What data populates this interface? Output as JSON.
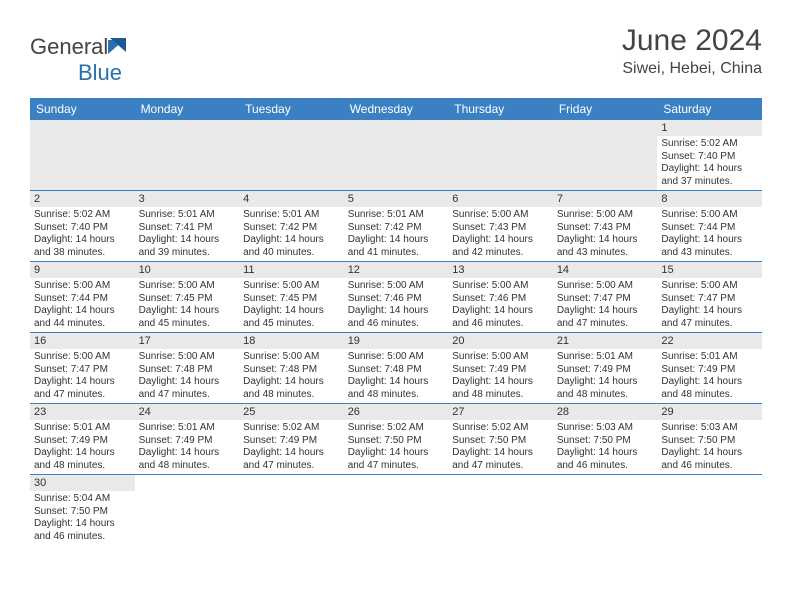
{
  "logo": {
    "general": "General",
    "blue": "Blue"
  },
  "title": "June 2024",
  "location": "Siwei, Hebei, China",
  "colors": {
    "header_bg": "#3a80c3",
    "header_text": "#ffffff",
    "daynum_bg": "#e9e9e9",
    "border": "#3a80c3",
    "text": "#333333",
    "title_color": "#444444",
    "logo_blue": "#2b6fab"
  },
  "day_headers": [
    "Sunday",
    "Monday",
    "Tuesday",
    "Wednesday",
    "Thursday",
    "Friday",
    "Saturday"
  ],
  "weeks": [
    [
      null,
      null,
      null,
      null,
      null,
      null,
      {
        "n": "1",
        "sunrise": "5:02 AM",
        "sunset": "7:40 PM",
        "daylight": "14 hours and 37 minutes."
      }
    ],
    [
      {
        "n": "2",
        "sunrise": "5:02 AM",
        "sunset": "7:40 PM",
        "daylight": "14 hours and 38 minutes."
      },
      {
        "n": "3",
        "sunrise": "5:01 AM",
        "sunset": "7:41 PM",
        "daylight": "14 hours and 39 minutes."
      },
      {
        "n": "4",
        "sunrise": "5:01 AM",
        "sunset": "7:42 PM",
        "daylight": "14 hours and 40 minutes."
      },
      {
        "n": "5",
        "sunrise": "5:01 AM",
        "sunset": "7:42 PM",
        "daylight": "14 hours and 41 minutes."
      },
      {
        "n": "6",
        "sunrise": "5:00 AM",
        "sunset": "7:43 PM",
        "daylight": "14 hours and 42 minutes."
      },
      {
        "n": "7",
        "sunrise": "5:00 AM",
        "sunset": "7:43 PM",
        "daylight": "14 hours and 43 minutes."
      },
      {
        "n": "8",
        "sunrise": "5:00 AM",
        "sunset": "7:44 PM",
        "daylight": "14 hours and 43 minutes."
      }
    ],
    [
      {
        "n": "9",
        "sunrise": "5:00 AM",
        "sunset": "7:44 PM",
        "daylight": "14 hours and 44 minutes."
      },
      {
        "n": "10",
        "sunrise": "5:00 AM",
        "sunset": "7:45 PM",
        "daylight": "14 hours and 45 minutes."
      },
      {
        "n": "11",
        "sunrise": "5:00 AM",
        "sunset": "7:45 PM",
        "daylight": "14 hours and 45 minutes."
      },
      {
        "n": "12",
        "sunrise": "5:00 AM",
        "sunset": "7:46 PM",
        "daylight": "14 hours and 46 minutes."
      },
      {
        "n": "13",
        "sunrise": "5:00 AM",
        "sunset": "7:46 PM",
        "daylight": "14 hours and 46 minutes."
      },
      {
        "n": "14",
        "sunrise": "5:00 AM",
        "sunset": "7:47 PM",
        "daylight": "14 hours and 47 minutes."
      },
      {
        "n": "15",
        "sunrise": "5:00 AM",
        "sunset": "7:47 PM",
        "daylight": "14 hours and 47 minutes."
      }
    ],
    [
      {
        "n": "16",
        "sunrise": "5:00 AM",
        "sunset": "7:47 PM",
        "daylight": "14 hours and 47 minutes."
      },
      {
        "n": "17",
        "sunrise": "5:00 AM",
        "sunset": "7:48 PM",
        "daylight": "14 hours and 47 minutes."
      },
      {
        "n": "18",
        "sunrise": "5:00 AM",
        "sunset": "7:48 PM",
        "daylight": "14 hours and 48 minutes."
      },
      {
        "n": "19",
        "sunrise": "5:00 AM",
        "sunset": "7:48 PM",
        "daylight": "14 hours and 48 minutes."
      },
      {
        "n": "20",
        "sunrise": "5:00 AM",
        "sunset": "7:49 PM",
        "daylight": "14 hours and 48 minutes."
      },
      {
        "n": "21",
        "sunrise": "5:01 AM",
        "sunset": "7:49 PM",
        "daylight": "14 hours and 48 minutes."
      },
      {
        "n": "22",
        "sunrise": "5:01 AM",
        "sunset": "7:49 PM",
        "daylight": "14 hours and 48 minutes."
      }
    ],
    [
      {
        "n": "23",
        "sunrise": "5:01 AM",
        "sunset": "7:49 PM",
        "daylight": "14 hours and 48 minutes."
      },
      {
        "n": "24",
        "sunrise": "5:01 AM",
        "sunset": "7:49 PM",
        "daylight": "14 hours and 48 minutes."
      },
      {
        "n": "25",
        "sunrise": "5:02 AM",
        "sunset": "7:49 PM",
        "daylight": "14 hours and 47 minutes."
      },
      {
        "n": "26",
        "sunrise": "5:02 AM",
        "sunset": "7:50 PM",
        "daylight": "14 hours and 47 minutes."
      },
      {
        "n": "27",
        "sunrise": "5:02 AM",
        "sunset": "7:50 PM",
        "daylight": "14 hours and 47 minutes."
      },
      {
        "n": "28",
        "sunrise": "5:03 AM",
        "sunset": "7:50 PM",
        "daylight": "14 hours and 46 minutes."
      },
      {
        "n": "29",
        "sunrise": "5:03 AM",
        "sunset": "7:50 PM",
        "daylight": "14 hours and 46 minutes."
      }
    ],
    [
      {
        "n": "30",
        "sunrise": "5:04 AM",
        "sunset": "7:50 PM",
        "daylight": "14 hours and 46 minutes."
      },
      null,
      null,
      null,
      null,
      null,
      null
    ]
  ],
  "labels": {
    "sunrise": "Sunrise:",
    "sunset": "Sunset:",
    "daylight": "Daylight:"
  }
}
